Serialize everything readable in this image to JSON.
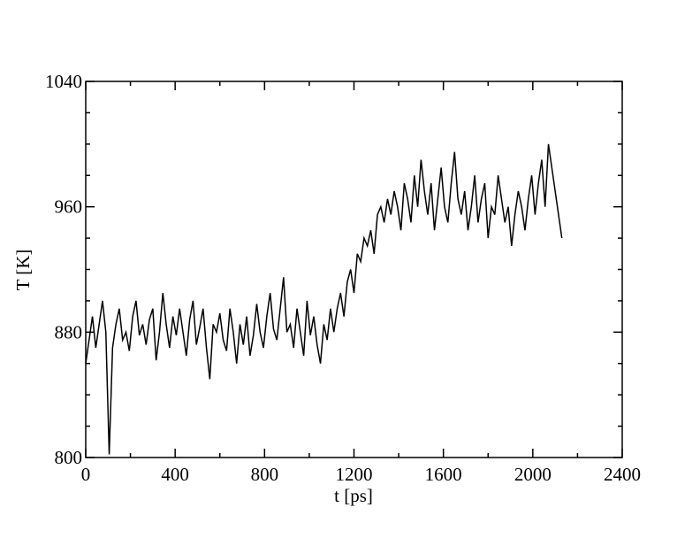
{
  "chart_data": {
    "type": "line",
    "xlabel": "t [ps]",
    "ylabel": "T [K]",
    "color": "#000000",
    "xlim": [
      0,
      2400
    ],
    "xticks": [
      0,
      400,
      800,
      1200,
      1600,
      2000,
      2400
    ],
    "xticks_minor": [
      200,
      600,
      1000,
      1400,
      1800,
      2200
    ],
    "ylim": [
      800,
      1040
    ],
    "yticks": [
      800,
      880,
      960,
      1040
    ],
    "yticks_minor": [
      820,
      840,
      860,
      900,
      920,
      940,
      980,
      1000,
      1020
    ],
    "x": [
      0,
      15,
      30,
      45,
      60,
      75,
      90,
      105,
      120,
      135,
      150,
      165,
      180,
      195,
      210,
      225,
      240,
      255,
      270,
      285,
      300,
      315,
      330,
      345,
      360,
      375,
      390,
      405,
      420,
      435,
      450,
      465,
      480,
      495,
      510,
      525,
      540,
      555,
      570,
      585,
      600,
      615,
      630,
      645,
      660,
      675,
      690,
      705,
      720,
      735,
      750,
      765,
      780,
      795,
      810,
      825,
      840,
      855,
      870,
      885,
      900,
      915,
      930,
      945,
      960,
      975,
      990,
      1005,
      1020,
      1035,
      1050,
      1065,
      1080,
      1095,
      1110,
      1125,
      1140,
      1155,
      1170,
      1185,
      1200,
      1215,
      1230,
      1245,
      1260,
      1275,
      1290,
      1305,
      1320,
      1335,
      1350,
      1365,
      1380,
      1395,
      1410,
      1425,
      1440,
      1455,
      1470,
      1485,
      1500,
      1515,
      1530,
      1545,
      1560,
      1575,
      1590,
      1605,
      1620,
      1635,
      1650,
      1665,
      1680,
      1695,
      1710,
      1725,
      1740,
      1755,
      1770,
      1785,
      1800,
      1815,
      1830,
      1845,
      1860,
      1875,
      1890,
      1905,
      1920,
      1935,
      1950,
      1965,
      1980,
      1995,
      2010,
      2025,
      2040,
      2055,
      2070,
      2085,
      2100,
      2115,
      2130
    ],
    "values": [
      860,
      875,
      890,
      870,
      885,
      900,
      880,
      802,
      870,
      885,
      895,
      875,
      880,
      868,
      890,
      900,
      878,
      885,
      872,
      888,
      895,
      862,
      880,
      905,
      885,
      870,
      890,
      878,
      895,
      880,
      865,
      888,
      900,
      872,
      883,
      895,
      870,
      850,
      885,
      880,
      892,
      875,
      868,
      895,
      880,
      860,
      885,
      872,
      890,
      865,
      878,
      898,
      880,
      870,
      890,
      905,
      882,
      875,
      895,
      915,
      880,
      885,
      870,
      895,
      880,
      865,
      900,
      878,
      890,
      872,
      860,
      885,
      875,
      895,
      880,
      895,
      905,
      890,
      912,
      920,
      905,
      930,
      925,
      940,
      935,
      945,
      930,
      955,
      960,
      950,
      965,
      955,
      970,
      960,
      945,
      975,
      965,
      950,
      980,
      960,
      990,
      970,
      955,
      975,
      945,
      965,
      985,
      960,
      950,
      975,
      995,
      965,
      955,
      970,
      945,
      960,
      980,
      950,
      965,
      975,
      940,
      960,
      955,
      980,
      965,
      950,
      960,
      935,
      955,
      970,
      960,
      945,
      965,
      980,
      955,
      975,
      990,
      960,
      1000,
      985,
      970,
      955,
      940
    ]
  }
}
